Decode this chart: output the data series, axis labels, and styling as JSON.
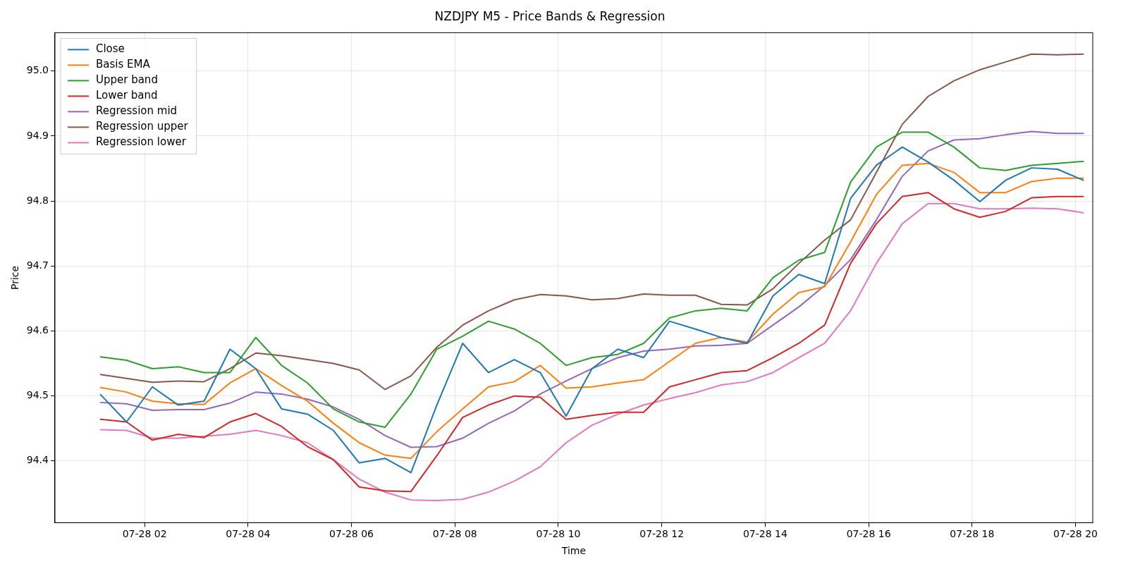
{
  "chart_data": {
    "type": "line",
    "title": "NZDJPY M5 - Price Bands & Regression",
    "xlabel": "Time",
    "ylabel": "Price",
    "x": [
      "--07-28T01:09",
      "--07-28T01:39",
      "--07-28T02:09",
      "--07-28T02:39",
      "--07-28T03:09",
      "--07-28T03:39",
      "--07-28T04:09",
      "--07-28T04:39",
      "--07-28T05:09",
      "--07-28T05:39",
      "--07-28T06:09",
      "--07-28T06:39",
      "--07-28T07:09",
      "--07-28T07:39",
      "--07-28T08:09",
      "--07-28T08:39",
      "--07-28T09:09",
      "--07-28T09:39",
      "--07-28T10:09",
      "--07-28T10:39",
      "--07-28T11:09",
      "--07-28T11:39",
      "--07-28T12:09",
      "--07-28T12:39",
      "--07-28T13:09",
      "--07-28T13:39",
      "--07-28T14:09",
      "--07-28T14:39",
      "--07-28T15:09",
      "--07-28T15:39",
      "--07-28T16:09",
      "--07-28T16:39",
      "--07-28T17:09",
      "--07-28T17:39",
      "--07-28T18:09",
      "--07-28T18:39",
      "--07-28T19:09",
      "--07-28T19:39",
      "--07-28T20:09"
    ],
    "xlim": [
      "--07-28T00:16",
      "--07-28T20:20"
    ],
    "xticks": [
      {
        "value": "--07-28T02:00",
        "label": "07-28 02"
      },
      {
        "value": "--07-28T04:00",
        "label": "07-28 04"
      },
      {
        "value": "--07-28T06:00",
        "label": "07-28 06"
      },
      {
        "value": "--07-28T08:00",
        "label": "07-28 08"
      },
      {
        "value": "--07-28T10:00",
        "label": "07-28 10"
      },
      {
        "value": "--07-28T12:00",
        "label": "07-28 12"
      },
      {
        "value": "--07-28T14:00",
        "label": "07-28 14"
      },
      {
        "value": "--07-28T16:00",
        "label": "07-28 16"
      },
      {
        "value": "--07-28T18:00",
        "label": "07-28 18"
      },
      {
        "value": "--07-28T20:00",
        "label": "07-28 20"
      }
    ],
    "ylim": [
      94.305,
      95.059
    ],
    "yticks": [
      {
        "value": 94.4,
        "label": "94.4"
      },
      {
        "value": 94.5,
        "label": "94.5"
      },
      {
        "value": 94.6,
        "label": "94.6"
      },
      {
        "value": 94.7,
        "label": "94.7"
      },
      {
        "value": 94.8,
        "label": "94.8"
      },
      {
        "value": 94.9,
        "label": "94.9"
      },
      {
        "value": 95.0,
        "label": "95.0"
      }
    ],
    "grid": true,
    "legend": "top left",
    "marker": "none",
    "line_style": "solid",
    "series": [
      {
        "name": "Close",
        "color": "#1f77b4",
        "values": [
          94.502,
          94.46,
          94.514,
          94.486,
          94.492,
          94.572,
          94.542,
          94.48,
          94.472,
          94.447,
          94.397,
          94.404,
          94.382,
          94.486,
          94.581,
          94.536,
          94.556,
          94.536,
          94.469,
          94.542,
          94.572,
          94.559,
          94.615,
          94.603,
          94.59,
          94.581,
          94.654,
          94.687,
          94.673,
          94.804,
          94.855,
          94.883,
          94.86,
          94.832,
          94.799,
          94.832,
          94.851,
          94.849,
          94.832
        ]
      },
      {
        "name": "Basis EMA",
        "color": "#ff7f0e",
        "values": [
          94.513,
          94.506,
          94.492,
          94.488,
          94.487,
          94.52,
          94.542,
          94.516,
          94.492,
          94.458,
          94.428,
          94.409,
          94.404,
          94.445,
          94.48,
          94.514,
          94.522,
          94.547,
          94.512,
          94.514,
          94.52,
          94.525,
          94.553,
          94.581,
          94.59,
          94.583,
          94.626,
          94.659,
          94.668,
          94.737,
          94.81,
          94.855,
          94.858,
          94.844,
          94.813,
          94.813,
          94.83,
          94.835,
          94.835
        ]
      },
      {
        "name": "Upper band",
        "color": "#2ca02c",
        "values": [
          94.56,
          94.555,
          94.542,
          94.545,
          94.536,
          94.536,
          94.59,
          94.547,
          94.52,
          94.48,
          94.46,
          94.452,
          94.503,
          94.572,
          94.592,
          94.615,
          94.603,
          94.581,
          94.547,
          94.559,
          94.564,
          94.581,
          94.62,
          94.631,
          94.635,
          94.631,
          94.682,
          94.709,
          94.721,
          94.829,
          94.883,
          94.906,
          94.906,
          94.883,
          94.851,
          94.847,
          94.855,
          94.858,
          94.861
        ]
      },
      {
        "name": "Lower band",
        "color": "#d62728",
        "values": [
          94.464,
          94.46,
          94.432,
          94.441,
          94.436,
          94.46,
          94.473,
          94.453,
          94.422,
          94.402,
          94.36,
          94.354,
          94.353,
          94.408,
          94.467,
          94.486,
          94.5,
          94.498,
          94.464,
          94.47,
          94.475,
          94.475,
          94.514,
          94.525,
          94.536,
          94.539,
          94.559,
          94.581,
          94.609,
          94.704,
          94.765,
          94.807,
          94.813,
          94.788,
          94.775,
          94.784,
          94.805,
          94.807,
          94.807
        ]
      },
      {
        "name": "Regression mid",
        "color": "#9467bd",
        "values": [
          94.49,
          94.488,
          94.478,
          94.479,
          94.479,
          94.489,
          94.506,
          94.503,
          94.495,
          94.483,
          94.464,
          94.439,
          94.421,
          94.422,
          94.435,
          94.458,
          94.477,
          94.503,
          94.523,
          94.542,
          94.559,
          94.569,
          94.572,
          94.577,
          94.578,
          94.581,
          94.609,
          94.637,
          94.67,
          94.71,
          94.771,
          94.838,
          94.877,
          94.894,
          94.896,
          94.902,
          94.907,
          94.904,
          94.904
        ]
      },
      {
        "name": "Regression upper",
        "color": "#8c564b",
        "values": [
          94.533,
          94.527,
          94.521,
          94.523,
          94.522,
          94.542,
          94.566,
          94.562,
          94.556,
          94.55,
          94.54,
          94.51,
          94.531,
          94.575,
          94.609,
          94.631,
          94.648,
          94.656,
          94.654,
          94.648,
          94.65,
          94.657,
          94.655,
          94.655,
          94.641,
          94.64,
          94.665,
          94.704,
          94.74,
          94.771,
          94.844,
          94.918,
          94.961,
          94.985,
          95.002,
          95.014,
          95.026,
          95.025,
          95.026
        ]
      },
      {
        "name": "Regression lower",
        "color": "#e377c2",
        "values": [
          94.448,
          94.447,
          94.435,
          94.435,
          94.438,
          94.441,
          94.447,
          94.439,
          94.428,
          94.402,
          94.372,
          94.352,
          94.34,
          94.339,
          94.341,
          94.352,
          94.369,
          94.391,
          94.428,
          94.455,
          94.472,
          94.486,
          94.496,
          94.505,
          94.517,
          94.522,
          94.536,
          94.559,
          94.581,
          94.631,
          94.704,
          94.765,
          94.796,
          94.796,
          94.788,
          94.788,
          94.789,
          94.788,
          94.782
        ]
      }
    ]
  }
}
